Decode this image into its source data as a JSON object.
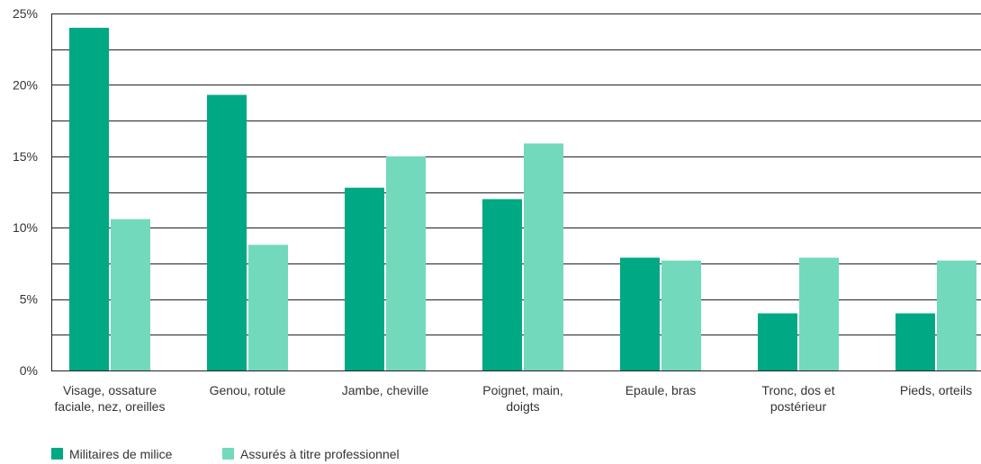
{
  "chart_data": {
    "type": "bar",
    "title": "",
    "xlabel": "",
    "ylabel": "",
    "ylim": [
      0,
      25
    ],
    "y_ticks": [
      0,
      5,
      10,
      15,
      20,
      25
    ],
    "y_tick_labels": [
      "0%",
      "5%",
      "10%",
      "15%",
      "20%",
      "25%"
    ],
    "y_unit": "%",
    "grid": true,
    "legend_position": "bottom-left",
    "categories": [
      [
        "Visage, ossature",
        "faciale, nez, oreilles"
      ],
      [
        "Genou, rotule"
      ],
      [
        "Jambe, cheville"
      ],
      [
        "Poignet, main,",
        "doigts"
      ],
      [
        "Epaule, bras"
      ],
      [
        "Tronc, dos et",
        "postérieur"
      ],
      [
        "Pieds, orteils"
      ]
    ],
    "series": [
      {
        "name": "Militaires de milice",
        "color": "#00a884",
        "values": [
          24,
          19.3,
          12.8,
          12,
          7.9,
          4,
          4
        ]
      },
      {
        "name": "Assurés à titre professionnel",
        "color": "#72d9bd",
        "values": [
          10.6,
          8.8,
          15,
          15.9,
          7.7,
          7.9,
          7.7
        ]
      }
    ]
  }
}
